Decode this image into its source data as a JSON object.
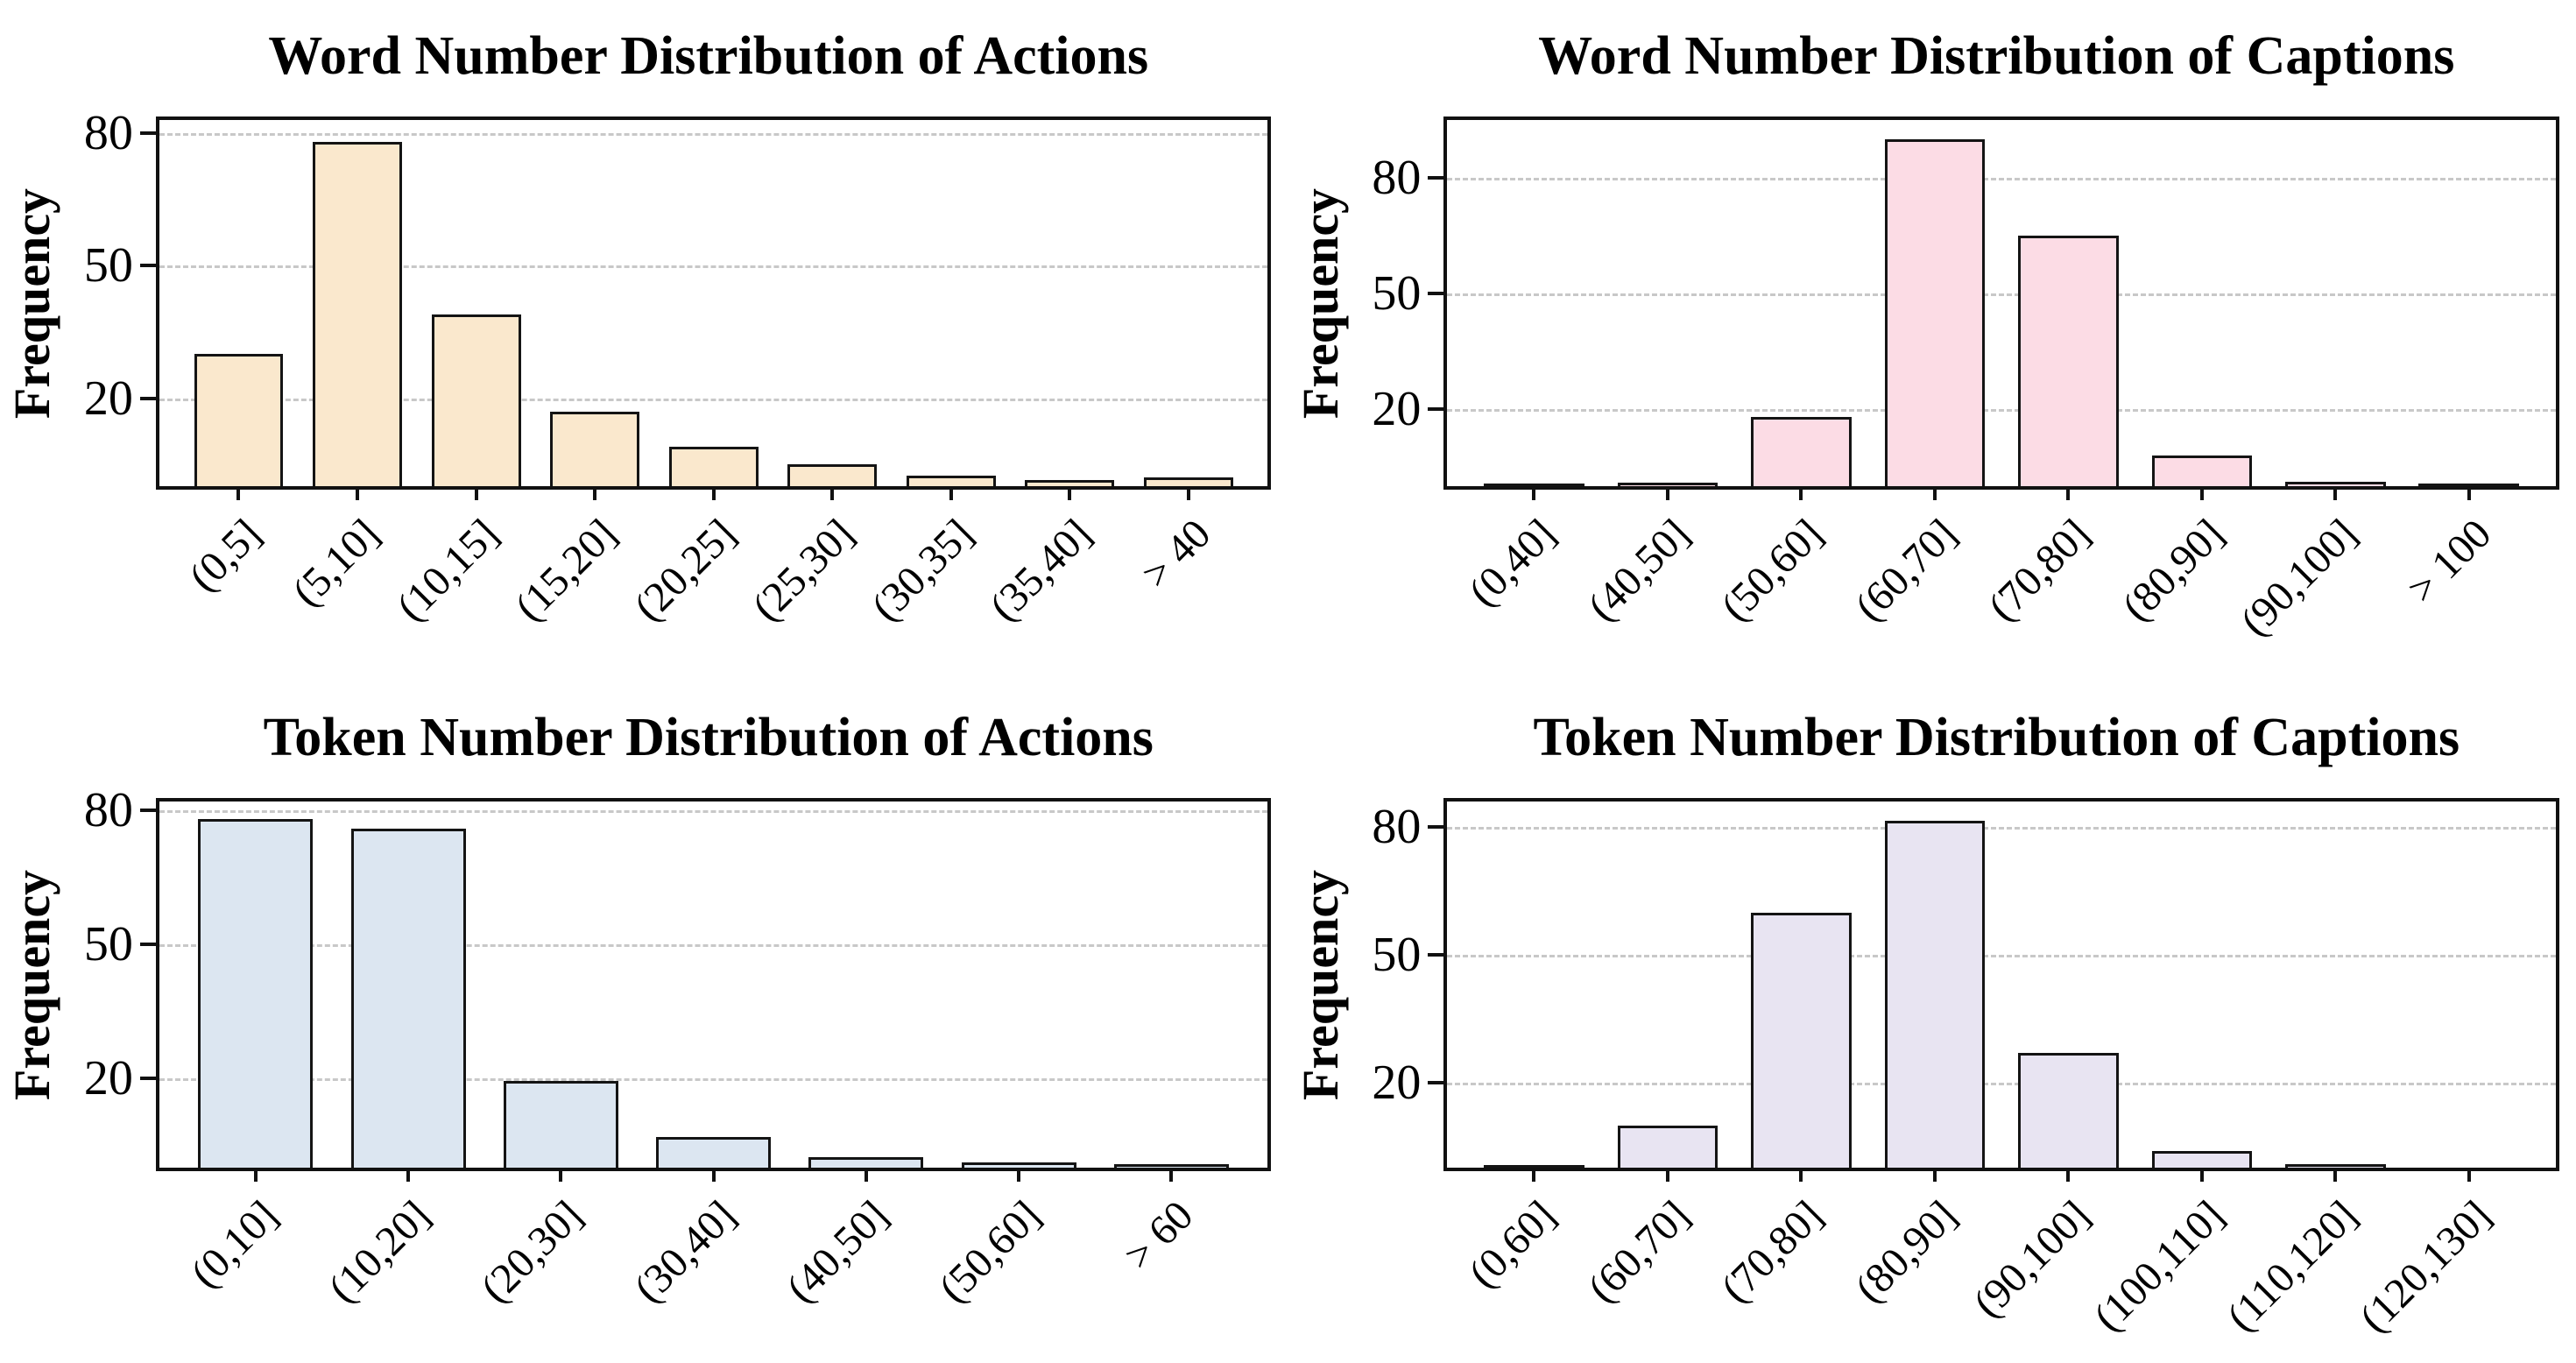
{
  "figure": {
    "ylabel": "Frequency",
    "grid_color": "#c8c8c8",
    "spine_color": "#111111",
    "background": "#ffffff"
  },
  "chart_data": [
    {
      "type": "bar",
      "title": "Word Number Distribution of Actions",
      "ylabel": "Frequency",
      "categories": [
        "(0,5]",
        "(5,10]",
        "(10,15]",
        "(15,20]",
        "(20,25]",
        "(25,30]",
        "(30,35]",
        "(35,40]",
        "> 40"
      ],
      "values": [
        30,
        78,
        39,
        17,
        9,
        5,
        2.5,
        1.5,
        2
      ],
      "bar_color": "#fae8cd",
      "edge_color": "#141414",
      "yticks": [
        20,
        50,
        80
      ],
      "ylim": [
        0,
        83
      ],
      "grid": "dashed-horizontal",
      "legend": "none"
    },
    {
      "type": "bar",
      "title": "Word Number Distribution of Captions",
      "ylabel": "Frequency",
      "categories": [
        "(0,40]",
        "(40,50]",
        "(50,60]",
        "(60,70]",
        "(70,80]",
        "(80,90]",
        "(90,100]",
        "> 100"
      ],
      "values": [
        0.3,
        1,
        18,
        90,
        65,
        8,
        1.2,
        0.4
      ],
      "bar_color": "#fcdce5",
      "edge_color": "#141414",
      "yticks": [
        20,
        50,
        80
      ],
      "ylim": [
        0,
        95
      ],
      "grid": "dashed-horizontal",
      "legend": "none"
    },
    {
      "type": "bar",
      "title": "Token Number Distribution of Actions",
      "ylabel": "Frequency",
      "categories": [
        "(0,10]",
        "(10,20]",
        "(20,30]",
        "(30,40]",
        "(40,50]",
        "(50,60]",
        "> 60"
      ],
      "values": [
        78,
        76,
        19.5,
        7,
        2.4,
        1.2,
        0.8
      ],
      "bar_color": "#dce6f1",
      "edge_color": "#141414",
      "yticks": [
        20,
        50,
        80
      ],
      "ylim": [
        0,
        82
      ],
      "grid": "dashed-horizontal",
      "legend": "none"
    },
    {
      "type": "bar",
      "title": "Token Number Distribution of Captions",
      "ylabel": "Frequency",
      "categories": [
        "(0,60]",
        "(60,70]",
        "(70,80]",
        "(80,90]",
        "(90,100]",
        "(100,110]",
        "(110,120]",
        "(120,130]"
      ],
      "values": [
        0.4,
        10,
        60,
        81.5,
        27,
        4,
        1,
        0
      ],
      "bar_color": "#e8e4f2",
      "edge_color": "#141414",
      "yticks": [
        20,
        50,
        80
      ],
      "ylim": [
        0,
        86
      ],
      "grid": "dashed-horizontal",
      "legend": "none"
    }
  ]
}
